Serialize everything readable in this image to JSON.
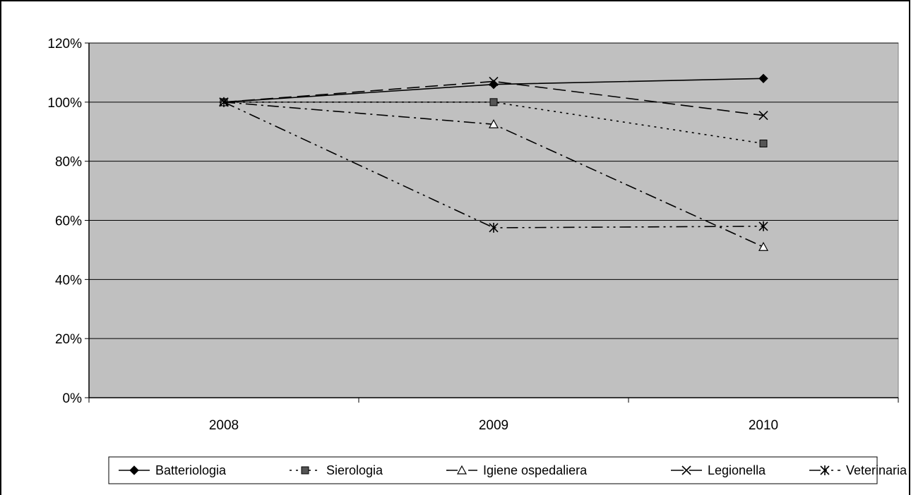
{
  "chart_data": {
    "type": "line",
    "title": "",
    "xlabel": "",
    "ylabel": "",
    "categories": [
      "2008",
      "2009",
      "2010"
    ],
    "ylim": [
      0,
      1.2
    ],
    "y_ticks": [
      0,
      0.2,
      0.4,
      0.6,
      0.8,
      1.0,
      1.2
    ],
    "y_tick_labels": [
      "0%",
      "20%",
      "40%",
      "60%",
      "80%",
      "100%",
      "120%"
    ],
    "y_format": "percent",
    "grid": "horizontal",
    "plot_background": "#c0c0c0",
    "legend_position": "bottom",
    "series": [
      {
        "name": "Batteriologia",
        "values": [
          1.0,
          1.06,
          1.08
        ],
        "marker": "diamond",
        "dash": "solid",
        "marker_fill": "#000000"
      },
      {
        "name": "Sierologia",
        "values": [
          1.0,
          1.0,
          0.86
        ],
        "marker": "square",
        "dash": "dot",
        "marker_fill": "#555555"
      },
      {
        "name": "Igiene ospedaliera",
        "values": [
          1.0,
          0.925,
          0.51
        ],
        "marker": "triangle",
        "dash": "dashdot",
        "marker_fill": "#ffffff"
      },
      {
        "name": "Legionella",
        "values": [
          1.0,
          1.07,
          0.955
        ],
        "marker": "x",
        "dash": "dash",
        "marker_fill": "none"
      },
      {
        "name": "Veterinaria",
        "values": [
          1.0,
          0.575,
          0.58
        ],
        "marker": "star",
        "dash": "dashdotdot",
        "marker_fill": "none"
      }
    ]
  }
}
